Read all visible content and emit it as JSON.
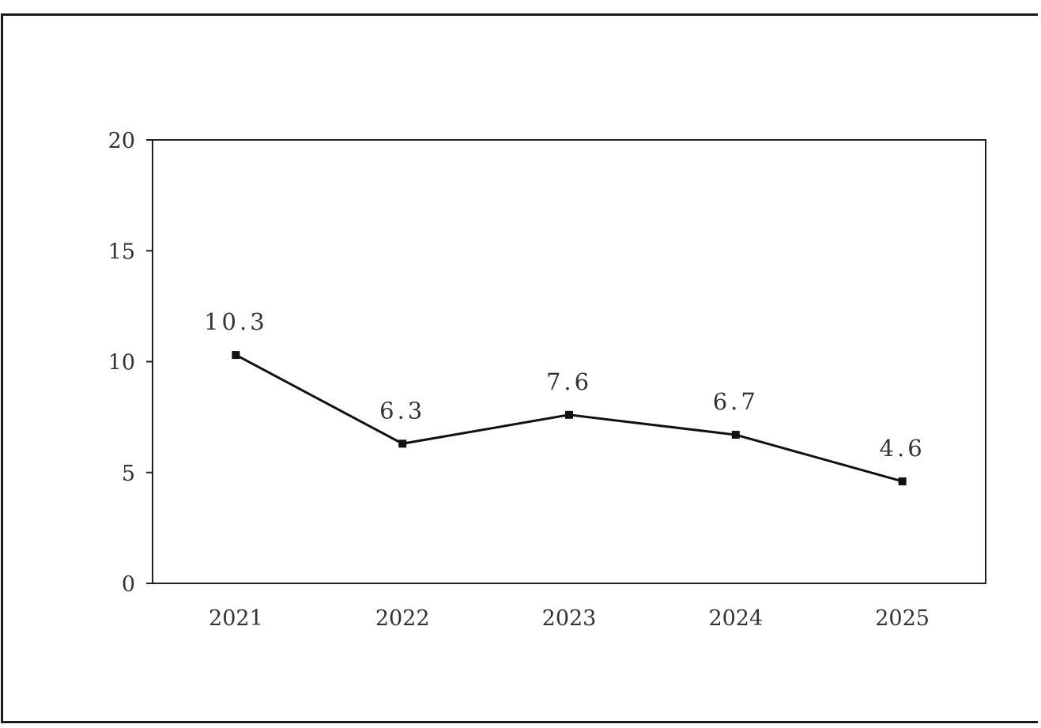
{
  "chart_data": {
    "type": "line",
    "categories": [
      "2021",
      "2022",
      "2023",
      "2024",
      "2025"
    ],
    "series": [
      {
        "values": [
          10.3,
          6.3,
          7.6,
          6.7,
          4.6
        ],
        "data_labels": [
          "10.3",
          "6.3",
          "7.6",
          "6.7",
          "4.6"
        ]
      }
    ],
    "ylim": [
      0,
      20
    ],
    "yticks": [
      "0",
      "5",
      "10",
      "15",
      "20"
    ],
    "title": "",
    "xlabel": "",
    "ylabel": "",
    "grid": false,
    "line_color": "#111111",
    "marker_color": "#111111"
  }
}
